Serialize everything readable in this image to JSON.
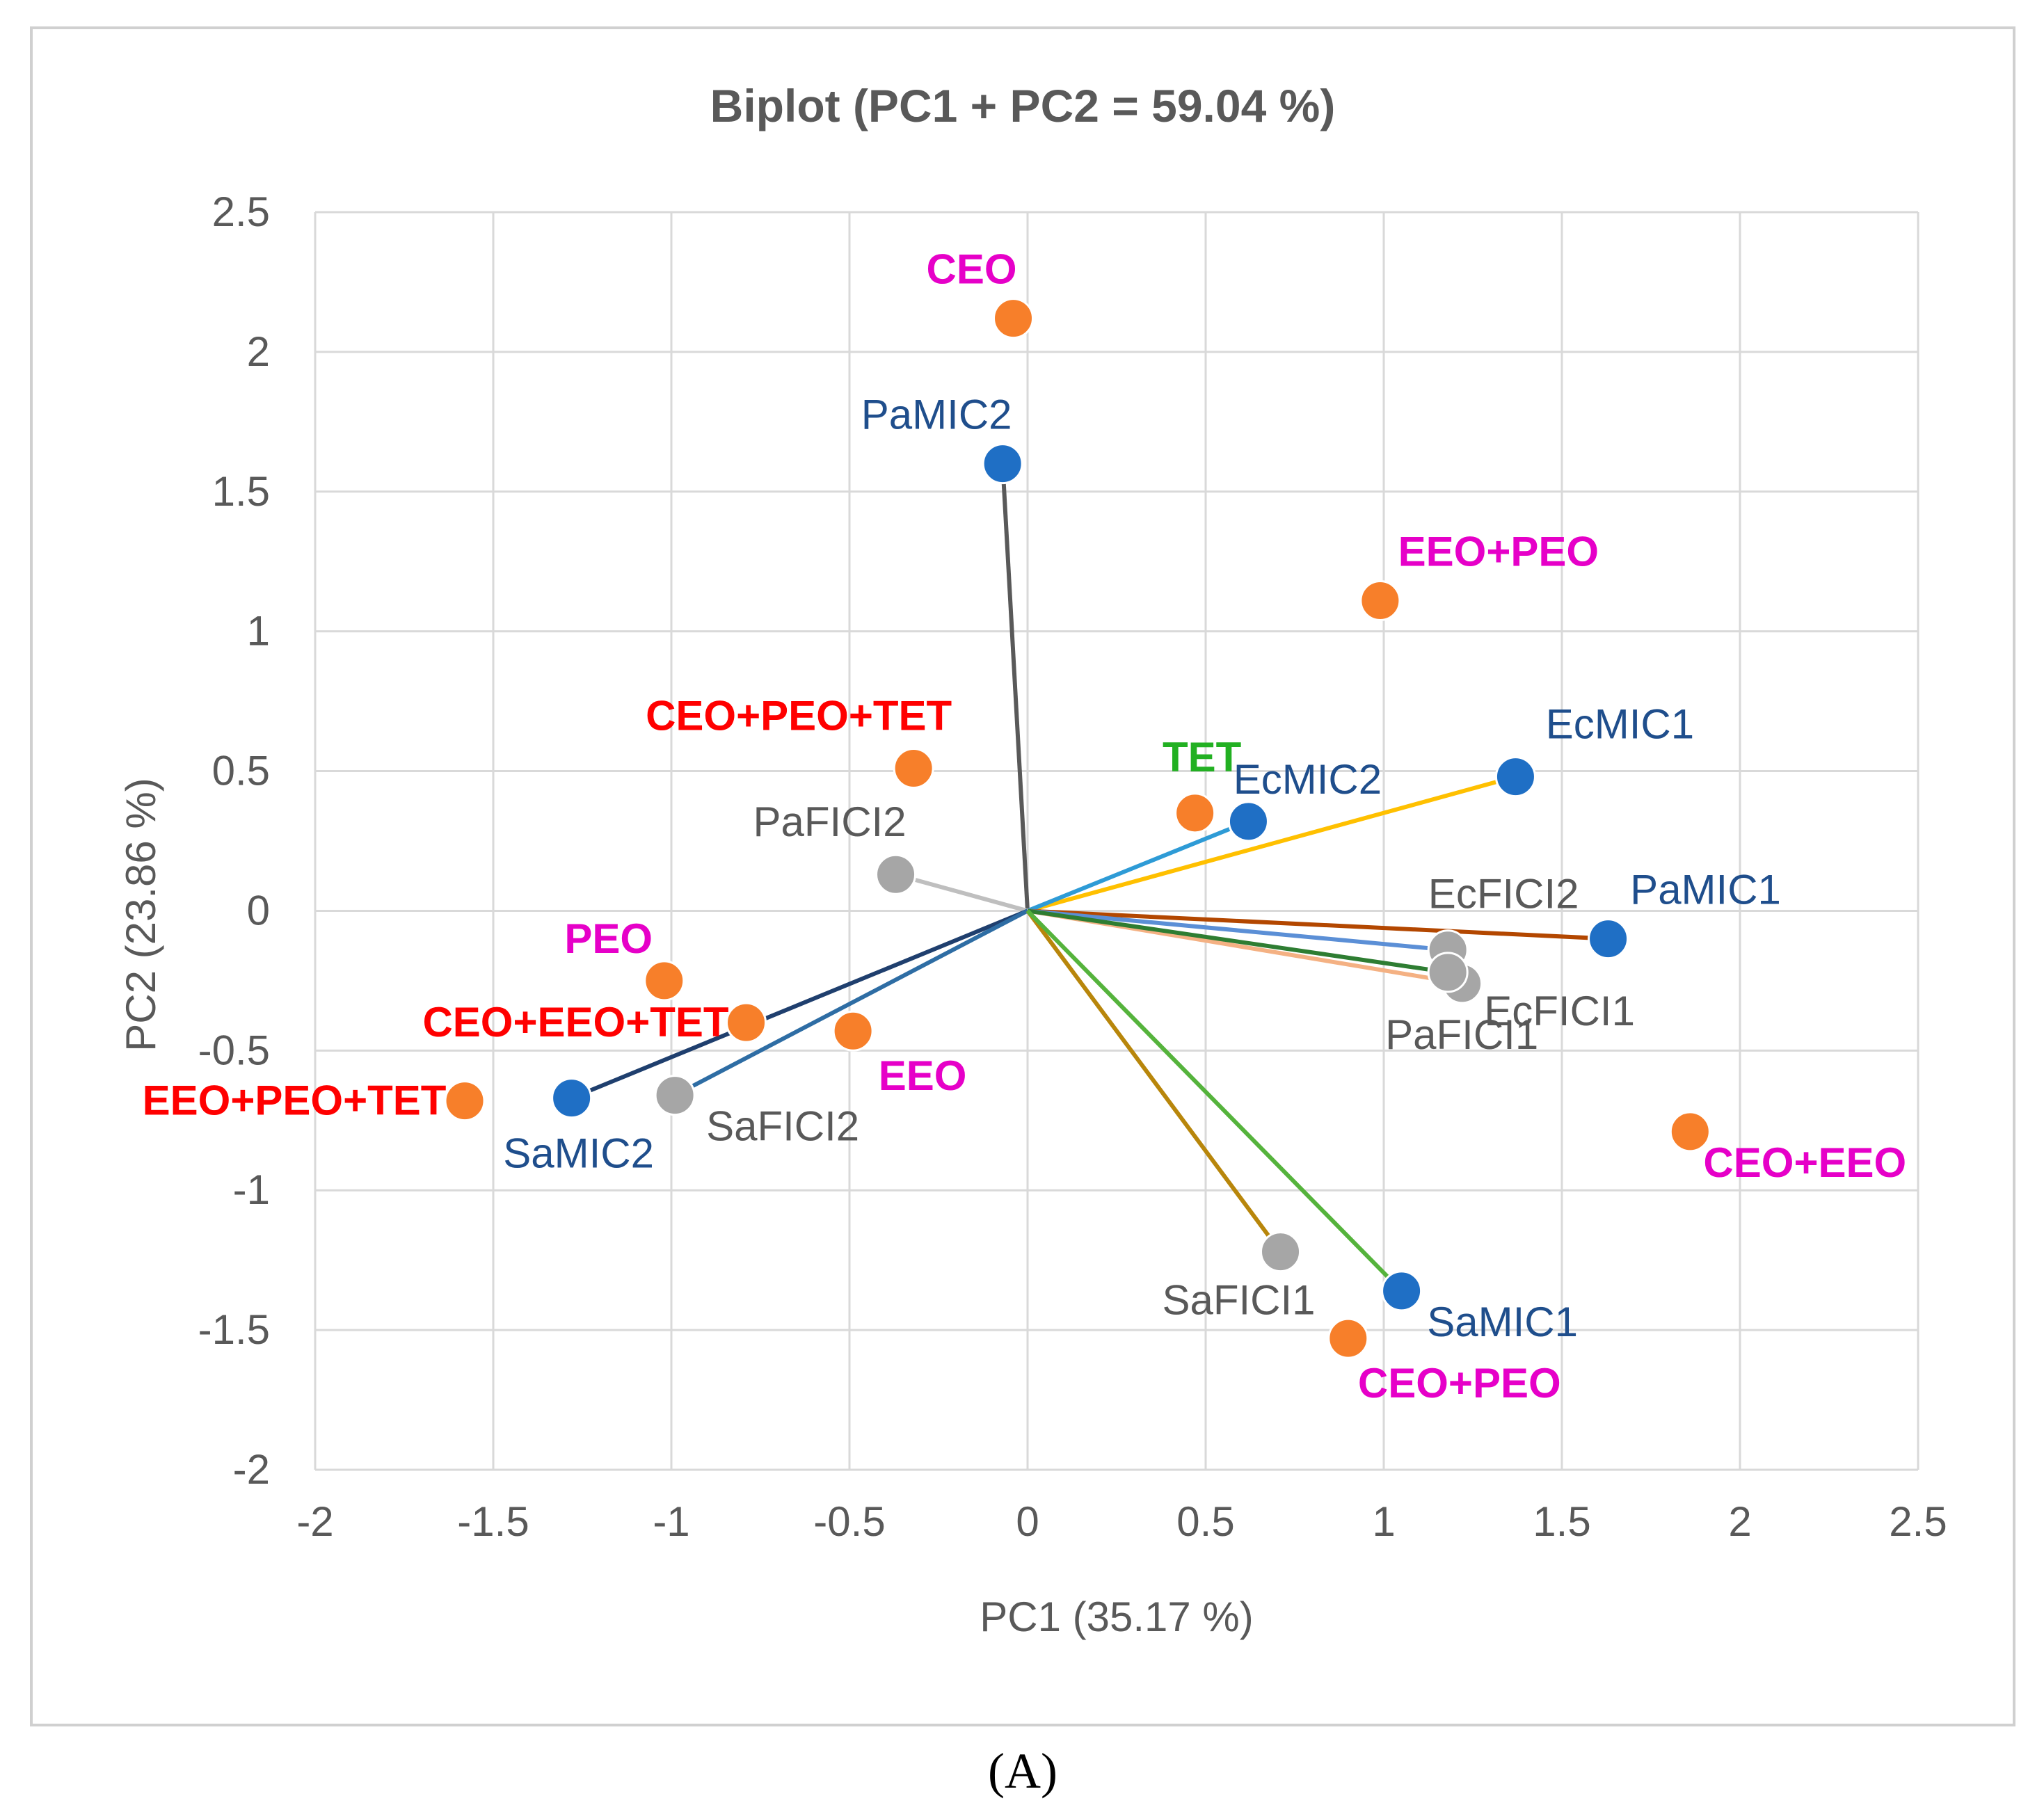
{
  "chart_data": {
    "type": "scatter",
    "title": "Biplot (PC1 + PC2 = 59.04 %)",
    "xlabel": "PC1 (35.17 %)",
    "ylabel": "PC2 (23.86 %)",
    "xlim": [
      -2,
      2.5
    ],
    "ylim": [
      -2,
      2.5
    ],
    "x_ticks": [
      -2,
      -1.5,
      -1,
      -0.5,
      0,
      0.5,
      1,
      1.5,
      2,
      2.5
    ],
    "y_ticks": [
      -2,
      -1.5,
      -1,
      -0.5,
      0,
      0.5,
      1,
      1.5,
      2,
      2.5
    ],
    "x_tick_labels": [
      "-2",
      "-1.5",
      "-1",
      "-0.5",
      "0",
      "0.5",
      "1",
      "1.5",
      "2",
      "2.5"
    ],
    "y_tick_labels": [
      "-2",
      "-1.5",
      "-1",
      "-0.5",
      "0",
      "0.5",
      "1",
      "1.5",
      "2",
      "2.5"
    ],
    "grid": true,
    "panel_label": "(A)",
    "colors": {
      "variable_mic": "#1f6fc5",
      "variable_fici": "#a6a6a6",
      "observation": "#f77f2a",
      "label_blue": "#1f4e8c",
      "label_gray": "#595959",
      "label_magenta": "#e600c8",
      "label_red": "#ff0000",
      "label_green": "#22b022"
    },
    "variables": [
      {
        "name": "PaMIC2",
        "x": -0.07,
        "y": 1.6,
        "kind": "mic",
        "line_color": "#595959"
      },
      {
        "name": "EcMIC1",
        "x": 1.37,
        "y": 0.48,
        "kind": "mic",
        "line_color": "#ffc000"
      },
      {
        "name": "EcMIC2",
        "x": 0.62,
        "y": 0.32,
        "kind": "mic",
        "line_color": "#2e9bd6"
      },
      {
        "name": "PaMIC1",
        "x": 1.63,
        "y": -0.1,
        "kind": "mic",
        "line_color": "#b34700"
      },
      {
        "name": "EcFICI2",
        "x": 1.18,
        "y": -0.14,
        "kind": "fici",
        "line_color": "#5b8fd6"
      },
      {
        "name": "EcFICI1",
        "x": 1.22,
        "y": -0.26,
        "kind": "fici",
        "line_color": "#f4b183"
      },
      {
        "name": "PaFICI1",
        "x": 1.18,
        "y": -0.22,
        "kind": "fici",
        "line_color": "#2e7d32"
      },
      {
        "name": "PaFICI2",
        "x": -0.37,
        "y": 0.13,
        "kind": "fici",
        "line_color": "#bfbfbf"
      },
      {
        "name": "SaMIC2",
        "x": -1.28,
        "y": -0.67,
        "kind": "mic",
        "line_color": "#1f3f6e"
      },
      {
        "name": "SaFICI2",
        "x": -0.99,
        "y": -0.66,
        "kind": "fici",
        "line_color": "#2e6da4"
      },
      {
        "name": "SaFICI1",
        "x": 0.71,
        "y": -1.22,
        "kind": "fici",
        "line_color": "#b8860b"
      },
      {
        "name": "SaMIC1",
        "x": 1.05,
        "y": -1.36,
        "kind": "mic",
        "line_color": "#55b33c"
      }
    ],
    "observations": [
      {
        "name": "CEO",
        "x": -0.04,
        "y": 2.12,
        "label_color": "magenta"
      },
      {
        "name": "EEO+PEO",
        "x": 0.99,
        "y": 1.11,
        "label_color": "magenta"
      },
      {
        "name": "CEO+PEO+TET",
        "x": -0.32,
        "y": 0.51,
        "label_color": "red"
      },
      {
        "name": "TET",
        "x": 0.47,
        "y": 0.35,
        "label_color": "green"
      },
      {
        "name": "PEO",
        "x": -1.02,
        "y": -0.25,
        "label_color": "magenta"
      },
      {
        "name": "CEO+EEO+TET",
        "x": -0.79,
        "y": -0.4,
        "label_color": "red"
      },
      {
        "name": "EEO",
        "x": -0.49,
        "y": -0.43,
        "label_color": "magenta"
      },
      {
        "name": "EEO+PEO+TET",
        "x": -1.58,
        "y": -0.68,
        "label_color": "red"
      },
      {
        "name": "CEO+EEO",
        "x": 1.86,
        "y": -0.79,
        "label_color": "magenta"
      },
      {
        "name": "CEO+PEO",
        "x": 0.9,
        "y": -1.53,
        "label_color": "magenta"
      }
    ]
  }
}
